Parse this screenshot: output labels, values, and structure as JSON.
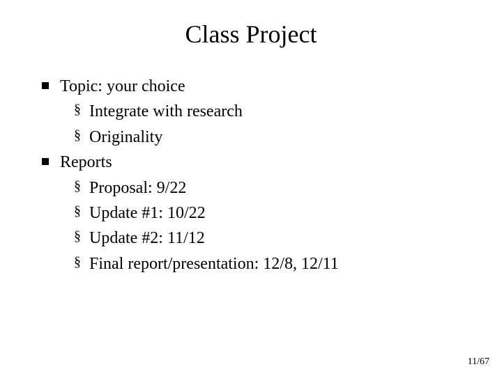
{
  "title": "Class Project",
  "bullets": [
    {
      "text": "Topic: your choice",
      "subs": [
        "Integrate with research",
        "Originality"
      ]
    },
    {
      "text": "Reports",
      "subs": [
        "Proposal: 9/22",
        "Update #1: 10/22",
        "Update #2: 11/12",
        "Final report/presentation: 12/8, 12/11"
      ]
    }
  ],
  "page_number": "11/67",
  "colors": {
    "background": "#ffffff",
    "text": "#000000"
  },
  "typography": {
    "title_fontsize": 36,
    "body_fontsize": 24,
    "pagenum_fontsize": 14,
    "font_family": "Times New Roman"
  }
}
